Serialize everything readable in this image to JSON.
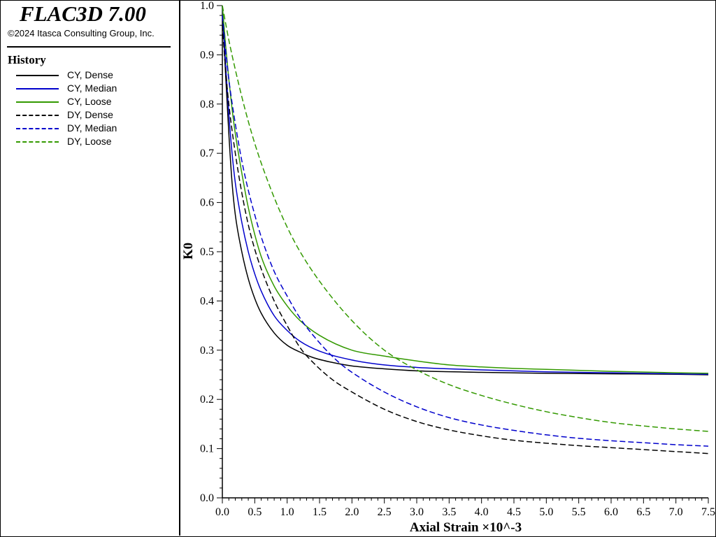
{
  "app": {
    "title": "FLAC3D 7.00",
    "copyright": "©2024 Itasca Consulting Group, Inc."
  },
  "legend": {
    "heading": "History"
  },
  "chart_data": {
    "type": "line",
    "xlabel": "Axial Strain ×10^-3",
    "ylabel": "K0",
    "xlim": [
      0,
      7.5
    ],
    "ylim": [
      0,
      1.0
    ],
    "x_ticks": [
      "0.0",
      "0.5",
      "1.0",
      "1.5",
      "2.0",
      "2.5",
      "3.0",
      "3.5",
      "4.0",
      "4.5",
      "5.0",
      "5.5",
      "6.0",
      "6.5",
      "7.0",
      "7.5"
    ],
    "y_ticks": [
      "0.0",
      "0.1",
      "0.2",
      "0.3",
      "0.4",
      "0.5",
      "0.6",
      "0.7",
      "0.8",
      "0.9",
      "1.0"
    ],
    "grid": false,
    "series": [
      {
        "name": "CY, Dense",
        "color": "#000000",
        "dash": "solid",
        "x": [
          0,
          0.05,
          0.1,
          0.15,
          0.2,
          0.3,
          0.4,
          0.5,
          0.6,
          0.8,
          1.0,
          1.2,
          1.4,
          1.7,
          2.0,
          2.5,
          3.0,
          4.0,
          5.0,
          6.0,
          7.0,
          7.5
        ],
        "y": [
          1.0,
          0.86,
          0.74,
          0.64,
          0.575,
          0.5,
          0.445,
          0.405,
          0.375,
          0.335,
          0.31,
          0.296,
          0.285,
          0.275,
          0.268,
          0.262,
          0.258,
          0.255,
          0.253,
          0.252,
          0.251,
          0.25
        ]
      },
      {
        "name": "CY, Median",
        "color": "#0000cc",
        "dash": "solid",
        "x": [
          0,
          0.05,
          0.1,
          0.15,
          0.2,
          0.3,
          0.4,
          0.5,
          0.6,
          0.8,
          1.0,
          1.2,
          1.5,
          2.0,
          2.5,
          3.0,
          3.5,
          4.0,
          5.0,
          6.0,
          7.0,
          7.5
        ],
        "y": [
          1.0,
          0.88,
          0.78,
          0.7,
          0.64,
          0.56,
          0.5,
          0.455,
          0.42,
          0.37,
          0.34,
          0.318,
          0.298,
          0.28,
          0.27,
          0.265,
          0.262,
          0.26,
          0.256,
          0.254,
          0.252,
          0.251
        ]
      },
      {
        "name": "CY, Loose",
        "color": "#339900",
        "dash": "solid",
        "x": [
          0,
          0.05,
          0.1,
          0.15,
          0.2,
          0.3,
          0.4,
          0.5,
          0.6,
          0.8,
          1.0,
          1.2,
          1.5,
          2.0,
          2.5,
          3.0,
          3.5,
          4.0,
          4.5,
          5.0,
          6.0,
          7.0,
          7.5
        ],
        "y": [
          1.0,
          0.92,
          0.85,
          0.79,
          0.74,
          0.66,
          0.59,
          0.535,
          0.49,
          0.43,
          0.39,
          0.36,
          0.33,
          0.3,
          0.288,
          0.278,
          0.27,
          0.266,
          0.263,
          0.261,
          0.257,
          0.254,
          0.253
        ]
      },
      {
        "name": "DY, Dense",
        "color": "#000000",
        "dash": "dashed",
        "x": [
          0,
          0.05,
          0.1,
          0.2,
          0.3,
          0.4,
          0.5,
          0.6,
          0.8,
          1.0,
          1.2,
          1.4,
          1.7,
          2.0,
          2.5,
          3.0,
          3.5,
          4.0,
          4.5,
          5.0,
          5.5,
          6.0,
          6.5,
          7.0,
          7.5
        ],
        "y": [
          0.96,
          0.87,
          0.8,
          0.7,
          0.62,
          0.555,
          0.505,
          0.465,
          0.4,
          0.35,
          0.305,
          0.275,
          0.24,
          0.215,
          0.18,
          0.155,
          0.138,
          0.126,
          0.117,
          0.111,
          0.106,
          0.102,
          0.098,
          0.094,
          0.09
        ]
      },
      {
        "name": "DY, Median",
        "color": "#0000cc",
        "dash": "dashed",
        "x": [
          0,
          0.05,
          0.1,
          0.2,
          0.3,
          0.4,
          0.5,
          0.6,
          0.8,
          1.0,
          1.2,
          1.5,
          1.8,
          2.0,
          2.5,
          3.0,
          3.5,
          4.0,
          4.5,
          5.0,
          5.5,
          6.0,
          6.5,
          7.0,
          7.5
        ],
        "y": [
          0.98,
          0.91,
          0.85,
          0.76,
          0.685,
          0.625,
          0.575,
          0.53,
          0.46,
          0.41,
          0.365,
          0.315,
          0.275,
          0.255,
          0.215,
          0.185,
          0.163,
          0.148,
          0.137,
          0.128,
          0.121,
          0.116,
          0.112,
          0.108,
          0.105
        ]
      },
      {
        "name": "DY, Loose",
        "color": "#339900",
        "dash": "dashed",
        "x": [
          0,
          0.1,
          0.2,
          0.3,
          0.4,
          0.5,
          0.6,
          0.8,
          1.0,
          1.2,
          1.5,
          2.0,
          2.5,
          3.0,
          3.5,
          4.0,
          4.5,
          5.0,
          5.5,
          6.0,
          6.5,
          7.0,
          7.5
        ],
        "y": [
          1.0,
          0.93,
          0.87,
          0.815,
          0.765,
          0.72,
          0.68,
          0.61,
          0.55,
          0.5,
          0.44,
          0.36,
          0.3,
          0.26,
          0.23,
          0.208,
          0.19,
          0.175,
          0.163,
          0.153,
          0.146,
          0.14,
          0.135
        ]
      }
    ]
  }
}
